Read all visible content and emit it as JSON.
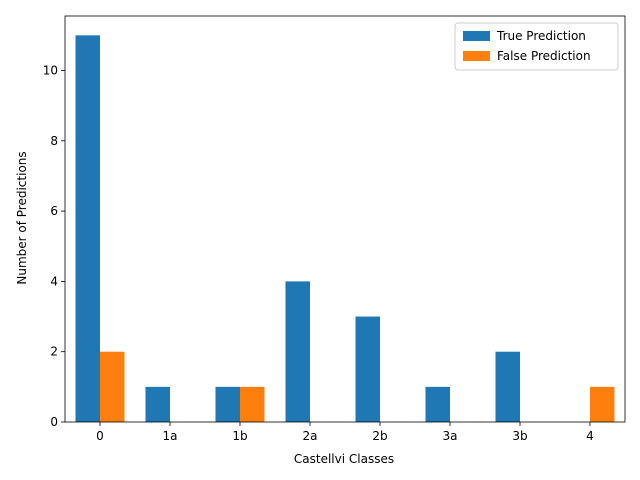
{
  "chart_data": {
    "type": "bar",
    "title": "",
    "xlabel": "Castellvi Classes",
    "ylabel": "Number of Predictions",
    "categories": [
      "0",
      "1a",
      "1b",
      "2a",
      "2b",
      "3a",
      "3b",
      "4"
    ],
    "series": [
      {
        "name": "True Prediction",
        "color": "#1f77b4",
        "values": [
          11,
          1,
          1,
          4,
          3,
          1,
          2,
          0
        ]
      },
      {
        "name": "False Prediction",
        "color": "#ff7f0e",
        "values": [
          2,
          0,
          1,
          0,
          0,
          0,
          0,
          1
        ]
      }
    ],
    "ylim": [
      0,
      11.55
    ],
    "yticks": [
      0,
      2,
      4,
      6,
      8,
      10
    ],
    "grid": false,
    "legend_position": "top-right"
  }
}
